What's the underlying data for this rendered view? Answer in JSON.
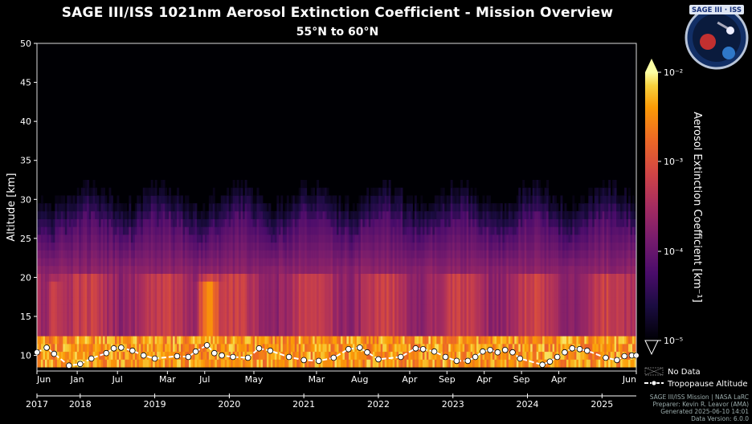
{
  "header": {
    "title": "SAGE III/ISS 1021nm Aerosol Extinction Coefficient - Mission Overview",
    "subtitle": "55°N to 60°N"
  },
  "logo": {
    "text": "SAGE III · ISS"
  },
  "chart_data": {
    "type": "heatmap",
    "ylabel": "Altitude [km]",
    "ylim": [
      8,
      50
    ],
    "yticks": [
      "10",
      "15",
      "20",
      "25",
      "30",
      "35",
      "40",
      "45",
      "50"
    ],
    "xlim": [
      2017.42,
      2025.46
    ],
    "month_ticks": [
      {
        "t": 2017.42,
        "label": "Jun"
      },
      {
        "t": 2017.96,
        "label": "Jan"
      },
      {
        "t": 2018.5,
        "label": "Jul"
      },
      {
        "t": 2019.17,
        "label": "Mar"
      },
      {
        "t": 2019.67,
        "label": "Jul"
      },
      {
        "t": 2020.33,
        "label": "May"
      },
      {
        "t": 2021.17,
        "label": "Mar"
      },
      {
        "t": 2021.75,
        "label": "Aug"
      },
      {
        "t": 2022.42,
        "label": "Apr"
      },
      {
        "t": 2022.92,
        "label": "Sep"
      },
      {
        "t": 2023.42,
        "label": "Apr"
      },
      {
        "t": 2023.92,
        "label": "Sep"
      },
      {
        "t": 2024.42,
        "label": "Apr"
      },
      {
        "t": 2025.46,
        "label": "Jun"
      }
    ],
    "year_ticks": [
      {
        "t": 2017.42,
        "label": "2017"
      },
      {
        "t": 2018.0,
        "label": "2018"
      },
      {
        "t": 2019.0,
        "label": "2019"
      },
      {
        "t": 2020.0,
        "label": "2020"
      },
      {
        "t": 2021.0,
        "label": "2021"
      },
      {
        "t": 2022.0,
        "label": "2022"
      },
      {
        "t": 2023.0,
        "label": "2023"
      },
      {
        "t": 2024.0,
        "label": "2024"
      },
      {
        "t": 2025.0,
        "label": "2025"
      }
    ],
    "colorbar": {
      "label": "Aerosol Extinction Coefficient [km⁻¹]",
      "scale": "log",
      "range": [
        1e-05,
        0.01
      ],
      "ticks": [
        "10⁻⁵",
        "10⁻⁴",
        "10⁻³",
        "10⁻²"
      ]
    },
    "legend": {
      "position": "bottom-right",
      "items": [
        "No Data",
        "Tropopause Altitude"
      ]
    },
    "tropopause": {
      "name": "Tropopause Altitude",
      "t": [
        2017.42,
        2017.55,
        2017.65,
        2017.85,
        2018.0,
        2018.15,
        2018.35,
        2018.45,
        2018.55,
        2018.7,
        2018.85,
        2019.0,
        2019.3,
        2019.45,
        2019.55,
        2019.7,
        2019.8,
        2019.9,
        2020.05,
        2020.25,
        2020.4,
        2020.55,
        2020.8,
        2021.0,
        2021.2,
        2021.4,
        2021.6,
        2021.75,
        2021.85,
        2022.0,
        2022.3,
        2022.5,
        2022.6,
        2022.75,
        2022.9,
        2023.05,
        2023.2,
        2023.3,
        2023.4,
        2023.5,
        2023.6,
        2023.7,
        2023.8,
        2023.9,
        2024.2,
        2024.3,
        2024.4,
        2024.5,
        2024.6,
        2024.7,
        2024.8,
        2025.05,
        2025.2,
        2025.3,
        2025.4,
        2025.46
      ],
      "alt_km": [
        10.4,
        11.0,
        10.2,
        8.7,
        8.9,
        9.6,
        10.3,
        10.9,
        11.0,
        10.6,
        10.0,
        9.6,
        9.9,
        9.8,
        10.5,
        11.3,
        10.3,
        10.0,
        9.8,
        9.7,
        10.9,
        10.6,
        9.8,
        9.4,
        9.3,
        9.7,
        10.8,
        11.0,
        10.4,
        9.5,
        9.8,
        10.9,
        10.8,
        10.5,
        9.8,
        9.3,
        9.3,
        9.8,
        10.5,
        10.7,
        10.4,
        10.7,
        10.4,
        9.6,
        8.8,
        9.2,
        9.8,
        10.4,
        10.9,
        10.8,
        10.6,
        9.7,
        9.4,
        9.9,
        10.0,
        10.0
      ]
    }
  },
  "footer": {
    "line1": "SAGE III/ISS Mission | NASA LaRC",
    "line2": "Preparer: Kevin R. Leavor (AMA)",
    "line3": "Generated 2025-06-10 14:01",
    "line4": "Data Version: 6.0.0"
  }
}
